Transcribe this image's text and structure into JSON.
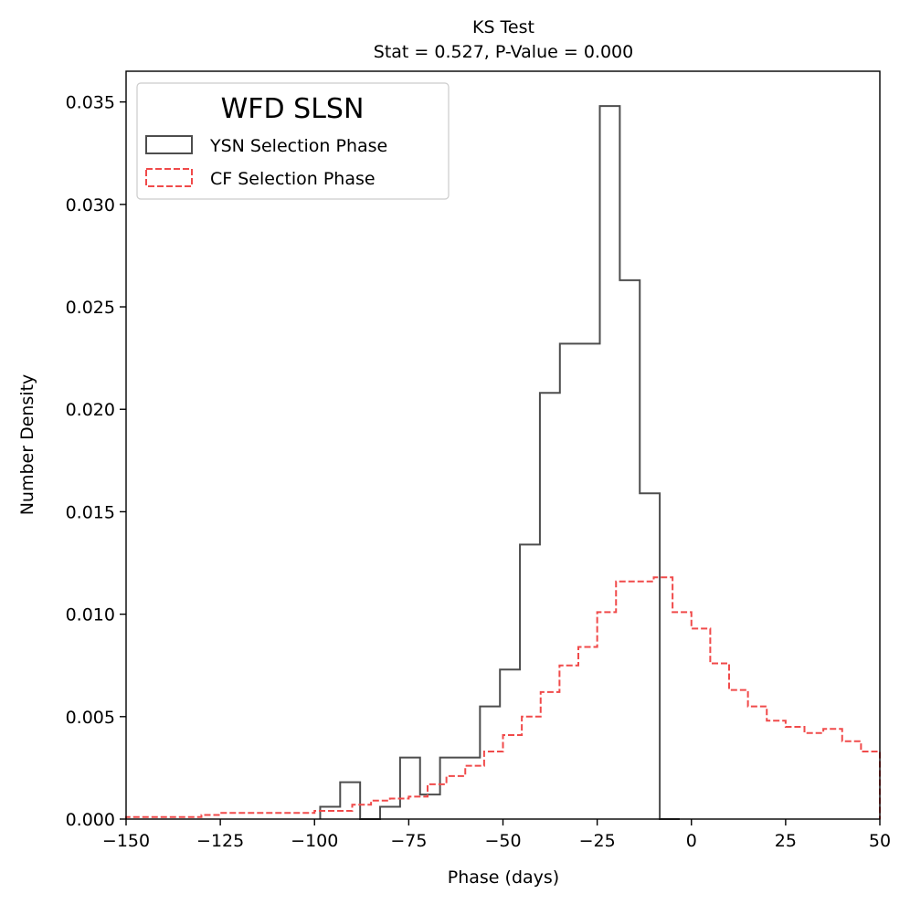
{
  "chart_data": {
    "type": "histogram-step",
    "title": "KS Test",
    "subtitle": "Stat = 0.527, P-Value = 0.000",
    "xlabel": "Phase (days)",
    "ylabel": "Number Density",
    "xlim": [
      -150,
      50
    ],
    "ylim": [
      0,
      0.0365
    ],
    "xticks": [
      -150,
      -125,
      -100,
      -75,
      -50,
      -25,
      0,
      25,
      50
    ],
    "xtick_labels": [
      "−150",
      "−125",
      "−100",
      "−75",
      "−50",
      "−25",
      "0",
      "25",
      "50"
    ],
    "yticks": [
      0,
      0.005,
      0.01,
      0.015,
      0.02,
      0.025,
      0.03,
      0.035
    ],
    "ytick_labels": [
      "0.000",
      "0.005",
      "0.010",
      "0.015",
      "0.020",
      "0.025",
      "0.030",
      "0.035"
    ],
    "grid": false,
    "legend": {
      "title": "WFD SLSN",
      "placement": "top-left",
      "entries": [
        "YSN Selection Phase",
        "CF Selection Phase"
      ]
    },
    "series": [
      {
        "name": "YSN Selection Phase",
        "color": "#4d4d4d",
        "linestyle": "solid",
        "bin_edges": [
          -98.5,
          -93.2,
          -87.9,
          -82.6,
          -77.3,
          -72.0,
          -66.7,
          -61.4,
          -56.1,
          -50.8,
          -45.5,
          -40.2,
          -34.9,
          -29.6,
          -24.3,
          -19.0,
          -13.7,
          -8.4,
          -3.1
        ],
        "values": [
          0.0006,
          0.0018,
          0.0,
          0.0006,
          0.003,
          0.0012,
          0.003,
          0.003,
          0.0055,
          0.0073,
          0.0134,
          0.0208,
          0.0232,
          0.0232,
          0.0348,
          0.0263,
          0.0159,
          0.0
        ]
      },
      {
        "name": "CF Selection Phase",
        "color": "#f04a4a",
        "linestyle": "dashed",
        "bin_edges": [
          -150.0,
          -145.0,
          -140.0,
          -135.0,
          -130.0,
          -125.0,
          -120.0,
          -115.0,
          -110.0,
          -105.0,
          -100.0,
          -95.0,
          -90.0,
          -85.0,
          -80.0,
          -75.0,
          -70.0,
          -65.0,
          -60.0,
          -55.0,
          -50.0,
          -45.0,
          -40.0,
          -35.0,
          -30.0,
          -25.0,
          -20.0,
          -15.0,
          -10.0,
          -5.0,
          0.0,
          5.0,
          10.0,
          15.0,
          20.0,
          25.0,
          30.0,
          35.0,
          40.0,
          45.0,
          50.0
        ],
        "values": [
          0.0001,
          0.0001,
          0.0001,
          0.0001,
          0.0002,
          0.0003,
          0.0003,
          0.0003,
          0.0003,
          0.0003,
          0.0004,
          0.0004,
          0.0007,
          0.0009,
          0.001,
          0.0011,
          0.0017,
          0.0021,
          0.0026,
          0.0033,
          0.0041,
          0.005,
          0.0062,
          0.0075,
          0.0084,
          0.0101,
          0.0116,
          0.0116,
          0.0118,
          0.0101,
          0.0093,
          0.0076,
          0.0063,
          0.0055,
          0.0048,
          0.0045,
          0.0042,
          0.0044,
          0.0038,
          0.0033
        ]
      }
    ]
  }
}
